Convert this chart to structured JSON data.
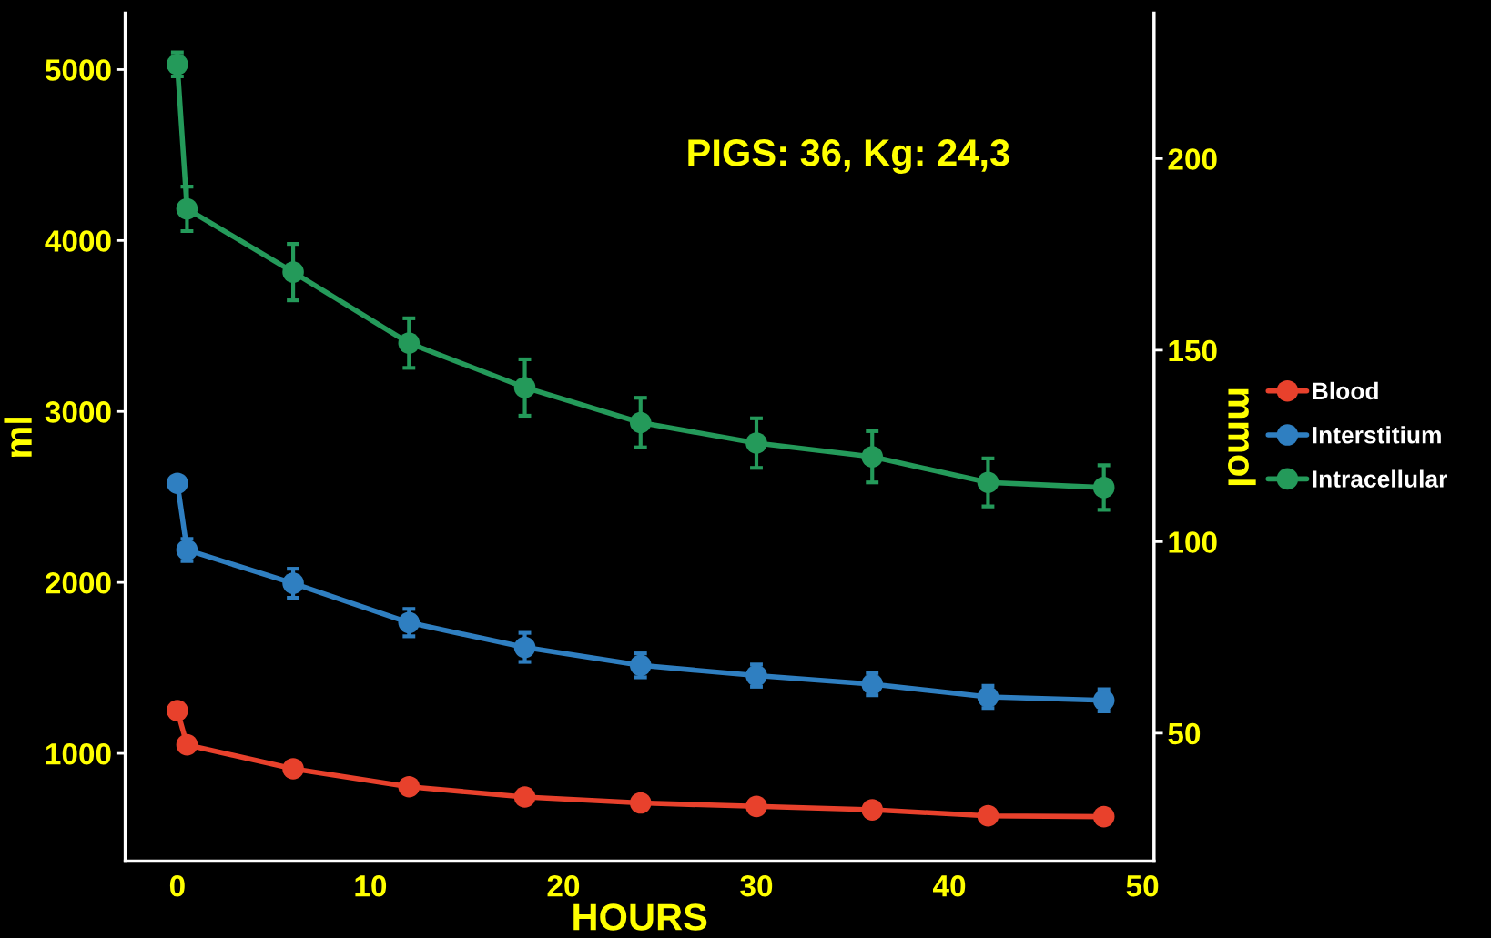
{
  "chart_data": {
    "type": "line",
    "xlabel": "HOURS",
    "ylabel": "ml",
    "y2label": "mmol",
    "x": [
      0,
      0.5,
      6,
      12,
      18,
      24,
      30,
      36,
      42,
      48
    ],
    "series": [
      {
        "name": "Blood",
        "color": "#e8412c",
        "values": [
          1250,
          1050,
          910,
          805,
          745,
          710,
          690,
          670,
          635,
          630
        ],
        "errors": [
          null,
          null,
          null,
          null,
          null,
          null,
          null,
          null,
          null,
          null
        ]
      },
      {
        "name": "Interstitium",
        "color": "#2f7fc1",
        "values": [
          2580,
          2190,
          1995,
          1765,
          1620,
          1515,
          1455,
          1405,
          1330,
          1310
        ],
        "errors": [
          null,
          65,
          85,
          80,
          85,
          70,
          65,
          65,
          65,
          65
        ]
      },
      {
        "name": "Intracellular",
        "color": "#249a5a",
        "values": [
          5030,
          4185,
          3815,
          3400,
          3140,
          2935,
          2815,
          2735,
          2585,
          2555
        ],
        "errors": [
          70,
          130,
          165,
          145,
          165,
          145,
          145,
          150,
          140,
          130
        ]
      }
    ],
    "xlim": [
      -2.7,
      50.6
    ],
    "xticks": [
      0,
      10,
      20,
      30,
      40,
      50
    ],
    "ylim": [
      370,
      5330
    ],
    "yticks": [
      1000,
      2000,
      3000,
      4000,
      5000
    ],
    "y2lim": [
      16.6,
      238
    ],
    "y2ticks": [
      50,
      100,
      150,
      200
    ],
    "annotations": [
      "PIGS: 36, Kg: 24,3"
    ],
    "legend": "right",
    "marker": "circle",
    "line_style": "solid",
    "grid": false
  }
}
